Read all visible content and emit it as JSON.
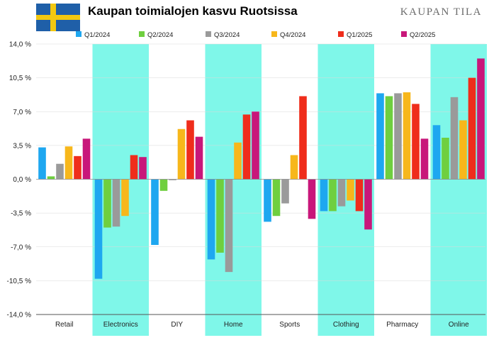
{
  "header": {
    "title": "Kaupan toimialojen kasvu Ruotsissa",
    "brand": "KAUPAN TILA",
    "flag_colors": {
      "blue": "#1f5fa8",
      "yellow": "#f2c811"
    }
  },
  "colors": {
    "highlight_band": "#7ff7e9",
    "grid": "#d9d9d9",
    "axis": "#555555"
  },
  "chart_data": {
    "type": "bar",
    "title": "Kaupan toimialojen kasvu Ruotsissa",
    "xlabel": "",
    "ylabel": "",
    "ylim": [
      -14,
      14
    ],
    "yticks": [
      14,
      10.5,
      7,
      3.5,
      0,
      -3.5,
      -7,
      -10.5,
      -14
    ],
    "ytick_labels": [
      "14,0 %",
      "10,5 %",
      "7,0 %",
      "3,5 %",
      "0,0 %",
      "-3,5 %",
      "-7,0 %",
      "-10,5 %",
      "-14,0 %"
    ],
    "grid": true,
    "legend_position": "top",
    "categories": [
      "Retail",
      "Electronics",
      "DIY",
      "Home",
      "Sports",
      "Clothing",
      "Pharmacy",
      "Online"
    ],
    "highlighted_categories": [
      "Electronics",
      "Home",
      "Clothing",
      "Online"
    ],
    "series": [
      {
        "name": "Q1/2024",
        "color": "#1ea7f0",
        "values": [
          3.3,
          -10.3,
          -6.8,
          -8.3,
          -4.4,
          -3.3,
          8.9,
          5.6
        ]
      },
      {
        "name": "Q2/2024",
        "color": "#6fcf3f",
        "values": [
          0.3,
          -5.0,
          -1.2,
          -7.6,
          -3.8,
          -3.3,
          8.6,
          4.3
        ]
      },
      {
        "name": "Q3/2024",
        "color": "#9a9a9a",
        "values": [
          1.6,
          -4.9,
          -0.1,
          -9.6,
          -2.5,
          -2.8,
          8.9,
          8.5
        ]
      },
      {
        "name": "Q4/2024",
        "color": "#f7b71b",
        "values": [
          3.4,
          -3.8,
          5.2,
          3.8,
          2.5,
          -2.2,
          9.0,
          6.1
        ]
      },
      {
        "name": "Q1/2025",
        "color": "#ef2d1b",
        "values": [
          2.4,
          2.5,
          6.1,
          6.7,
          8.6,
          -3.3,
          7.8,
          10.5
        ]
      },
      {
        "name": "Q2/2025",
        "color": "#c8177a",
        "values": [
          4.2,
          2.3,
          4.4,
          7.0,
          -4.1,
          -5.2,
          4.2,
          12.5
        ]
      }
    ]
  }
}
